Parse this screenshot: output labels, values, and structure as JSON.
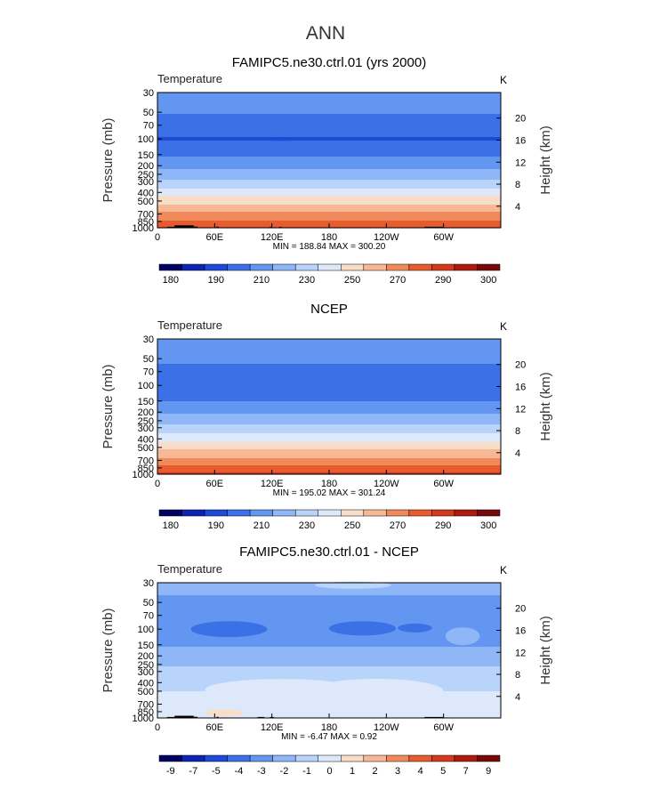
{
  "figure": {
    "title": "ANN"
  },
  "colorbar_colors": [
    "#020262",
    "#0d24b3",
    "#1d4ad6",
    "#3c70e6",
    "#6396f0",
    "#8fb6f6",
    "#b8d4fa",
    "#dde9fb",
    "#f8ddc9",
    "#f7b896",
    "#f08a5a",
    "#e65c2e",
    "#d13a1c",
    "#ad1a10",
    "#760909"
  ],
  "chart_data": [
    {
      "type": "heatmap",
      "title": "FAMIPC5.ne30.ctrl.01 (yrs 2000)",
      "variable": "Temperature",
      "units": "K",
      "xlabel": "",
      "ylabel": "Pressure  (mb)",
      "ylabel_right": "Height  (km)",
      "x_ticks": [
        "0",
        "60E",
        "120E",
        "180",
        "120W",
        "60W"
      ],
      "x_tick_values": [
        0,
        60,
        120,
        180,
        240,
        300
      ],
      "xlim": [
        0,
        360
      ],
      "y_ticks": [
        "30",
        "50",
        "70",
        "100",
        "150",
        "200",
        "250",
        "300",
        "400",
        "500",
        "700",
        "850",
        "1000"
      ],
      "y_tick_values": [
        30,
        50,
        70,
        100,
        150,
        200,
        250,
        300,
        400,
        500,
        700,
        850,
        1000
      ],
      "ylim": [
        30,
        1000
      ],
      "y_scale": "log",
      "right_ticks": [
        "20",
        "16",
        "12",
        "8",
        "4"
      ],
      "right_tick_values": [
        20,
        16,
        12,
        8,
        4
      ],
      "stats_text": "MIN = 188.84   MAX = 300.20",
      "min": 188.84,
      "max": 300.2,
      "levels": [
        180,
        185,
        190,
        200,
        210,
        220,
        230,
        240,
        250,
        260,
        270,
        280,
        290,
        295,
        300
      ],
      "colorbar_labels": [
        "180",
        "190",
        "210",
        "230",
        "250",
        "270",
        "290",
        "300"
      ],
      "colorbar_label_index": [
        0,
        2,
        4,
        6,
        8,
        10,
        12,
        14
      ],
      "profile": [
        [
          30,
          217
        ],
        [
          50,
          211
        ],
        [
          70,
          205
        ],
        [
          100,
          199
        ],
        [
          150,
          208
        ],
        [
          200,
          217
        ],
        [
          250,
          225
        ],
        [
          300,
          232
        ],
        [
          400,
          245
        ],
        [
          500,
          256
        ],
        [
          700,
          272
        ],
        [
          850,
          282
        ],
        [
          1000,
          291
        ]
      ],
      "features": [
        {
          "kind": "ellipse",
          "lon": 130,
          "p": 101,
          "dlon": 28,
          "dlogp": 0.012,
          "value": 194
        }
      ],
      "topography": [
        [
          10,
          20,
          975
        ],
        [
          18,
          38,
          940
        ],
        [
          38,
          42,
          970
        ],
        [
          62,
          64,
          970
        ],
        [
          118,
          120,
          975
        ],
        [
          128,
          130,
          975
        ],
        [
          280,
          300,
          975
        ]
      ]
    },
    {
      "type": "heatmap",
      "title": "NCEP",
      "variable": "Temperature",
      "units": "K",
      "xlabel": "",
      "ylabel": "Pressure  (mb)",
      "ylabel_right": "Height  (km)",
      "x_ticks": [
        "0",
        "60E",
        "120E",
        "180",
        "120W",
        "60W"
      ],
      "x_tick_values": [
        0,
        60,
        120,
        180,
        240,
        300
      ],
      "xlim": [
        0,
        360
      ],
      "y_ticks": [
        "30",
        "50",
        "70",
        "100",
        "150",
        "200",
        "250",
        "300",
        "400",
        "500",
        "700",
        "850",
        "1000"
      ],
      "y_tick_values": [
        30,
        50,
        70,
        100,
        150,
        200,
        250,
        300,
        400,
        500,
        700,
        850,
        1000
      ],
      "ylim": [
        30,
        1000
      ],
      "y_scale": "log",
      "right_ticks": [
        "20",
        "16",
        "12",
        "8",
        "4"
      ],
      "right_tick_values": [
        20,
        16,
        12,
        8,
        4
      ],
      "stats_text": "MIN = 195.02   MAX = 301.24",
      "min": 195.02,
      "max": 301.24,
      "levels": [
        180,
        185,
        190,
        200,
        210,
        220,
        230,
        240,
        250,
        260,
        270,
        280,
        290,
        295,
        300
      ],
      "colorbar_labels": [
        "180",
        "190",
        "210",
        "230",
        "250",
        "270",
        "290",
        "300"
      ],
      "colorbar_label_index": [
        0,
        2,
        4,
        6,
        8,
        10,
        12,
        14
      ],
      "profile": [
        [
          30,
          218
        ],
        [
          50,
          212
        ],
        [
          70,
          206
        ],
        [
          100,
          202
        ],
        [
          150,
          210
        ],
        [
          200,
          218
        ],
        [
          250,
          226
        ],
        [
          300,
          234
        ],
        [
          400,
          247
        ],
        [
          500,
          257
        ],
        [
          700,
          273
        ],
        [
          850,
          283
        ],
        [
          1000,
          293
        ]
      ],
      "features": [],
      "topography": []
    },
    {
      "type": "heatmap",
      "title": "FAMIPC5.ne30.ctrl.01 - NCEP",
      "variable": "Temperature",
      "units": "K",
      "xlabel": "",
      "ylabel": "Pressure  (mb)",
      "ylabel_right": "Height  (km)",
      "x_ticks": [
        "0",
        "60E",
        "120E",
        "180",
        "120W",
        "60W"
      ],
      "x_tick_values": [
        0,
        60,
        120,
        180,
        240,
        300
      ],
      "xlim": [
        0,
        360
      ],
      "y_ticks": [
        "30",
        "50",
        "70",
        "100",
        "150",
        "200",
        "250",
        "300",
        "400",
        "500",
        "700",
        "850",
        "1000"
      ],
      "y_tick_values": [
        30,
        50,
        70,
        100,
        150,
        200,
        250,
        300,
        400,
        500,
        700,
        850,
        1000
      ],
      "ylim": [
        30,
        1000
      ],
      "y_scale": "log",
      "right_ticks": [
        "20",
        "16",
        "12",
        "8",
        "4"
      ],
      "right_tick_values": [
        20,
        16,
        12,
        8,
        4
      ],
      "stats_text": "MIN =  -6.47   MAX =   0.92",
      "min": -6.47,
      "max": 0.92,
      "levels": [
        -10,
        -9,
        -8,
        -7,
        -6,
        -5,
        -4,
        -3,
        -2,
        -1,
        0,
        1,
        2,
        3,
        4,
        5,
        6,
        7,
        8,
        9
      ],
      "colorbar_labels": [
        "-9",
        "-7",
        "-5",
        "-4",
        "-3",
        "-2",
        "-1",
        "0",
        "1",
        "2",
        "3",
        "4",
        "5",
        "7",
        "9"
      ],
      "colorbar_label_index": [
        0,
        1,
        2,
        3,
        4,
        5,
        6,
        7,
        8,
        9,
        10,
        11,
        12,
        13,
        14
      ],
      "diff_levels": [
        -9,
        -7,
        -5,
        -4,
        -3,
        -2,
        -1,
        0,
        1,
        2,
        3,
        4,
        5,
        7,
        9
      ],
      "profile": [
        [
          30,
          -2.6
        ],
        [
          50,
          -3.2
        ],
        [
          70,
          -3.8
        ],
        [
          100,
          -3.9
        ],
        [
          150,
          -3.1
        ],
        [
          200,
          -2.6
        ],
        [
          250,
          -2.1
        ],
        [
          300,
          -1.8
        ],
        [
          400,
          -1.3
        ],
        [
          500,
          -1.0
        ],
        [
          700,
          -0.7
        ],
        [
          850,
          -0.4
        ],
        [
          1000,
          -0.3
        ]
      ],
      "features": [
        {
          "kind": "ellipse",
          "lon": 75,
          "p": 100,
          "dlon": 40,
          "dlogp": 0.09,
          "value": -4.6
        },
        {
          "kind": "ellipse",
          "lon": 215,
          "p": 98,
          "dlon": 35,
          "dlogp": 0.08,
          "value": -4.5
        },
        {
          "kind": "ellipse",
          "lon": 270,
          "p": 97,
          "dlon": 18,
          "dlogp": 0.05,
          "value": -4.4
        },
        {
          "kind": "ellipse",
          "lon": 320,
          "p": 120,
          "dlon": 18,
          "dlogp": 0.1,
          "value": -2.5
        },
        {
          "kind": "ellipse",
          "lon": 130,
          "p": 480,
          "dlon": 80,
          "dlogp": 0.12,
          "value": -0.6
        },
        {
          "kind": "ellipse",
          "lon": 230,
          "p": 500,
          "dlon": 70,
          "dlogp": 0.14,
          "value": -0.5
        },
        {
          "kind": "ellipse",
          "lon": 205,
          "p": 32,
          "dlon": 40,
          "dlogp": 0.04,
          "value": -1.8
        },
        {
          "kind": "ellipse",
          "lon": 70,
          "p": 880,
          "dlon": 20,
          "dlogp": 0.04,
          "value": 0.4
        }
      ],
      "topography": [
        [
          10,
          20,
          975
        ],
        [
          18,
          38,
          945
        ],
        [
          38,
          42,
          970
        ],
        [
          62,
          64,
          970
        ],
        [
          105,
          112,
          975
        ],
        [
          118,
          122,
          975
        ],
        [
          280,
          300,
          975
        ]
      ]
    }
  ]
}
